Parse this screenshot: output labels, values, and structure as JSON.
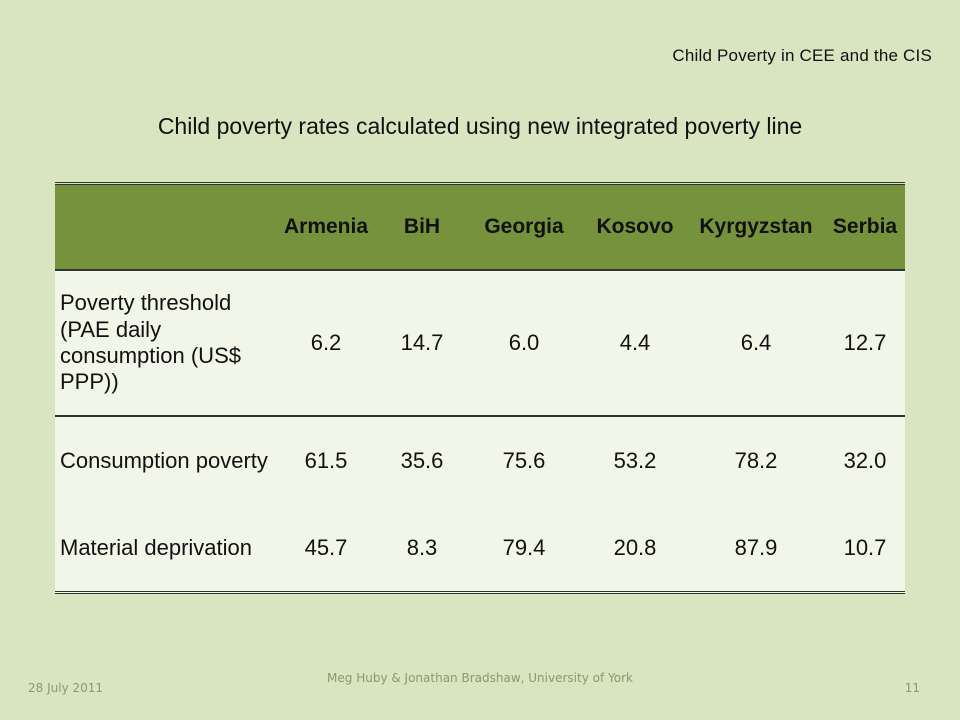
{
  "header": {
    "right_text": "Child Poverty in CEE and the CIS"
  },
  "title": "Child poverty rates calculated using new integrated poverty line",
  "table": {
    "columns": [
      "",
      "Armenia",
      "BiH",
      "Georgia",
      "Kosovo",
      "Kyrgyzstan",
      "Serbia"
    ],
    "rows": [
      {
        "label": "Poverty threshold (PAE daily consumption (US$ PPP))",
        "values": [
          "6.2",
          "14.7",
          "6.0",
          "4.4",
          "6.4",
          "12.7"
        ]
      },
      {
        "label": "Consumption poverty",
        "values": [
          "61.5",
          "35.6",
          "75.6",
          "53.2",
          "78.2",
          "32.0"
        ]
      },
      {
        "label": "Material deprivation",
        "values": [
          "45.7",
          "8.3",
          "79.4",
          "20.8",
          "87.9",
          "10.7"
        ]
      }
    ]
  },
  "footer": {
    "date": "28 July 2011",
    "authors": "Meg Huby & Jonathan Bradshaw, University of York",
    "page_number": "11"
  },
  "colors": {
    "background": "#d9e4c0",
    "header_fill": "#76923c",
    "body_fill": "#f2f6e8"
  }
}
